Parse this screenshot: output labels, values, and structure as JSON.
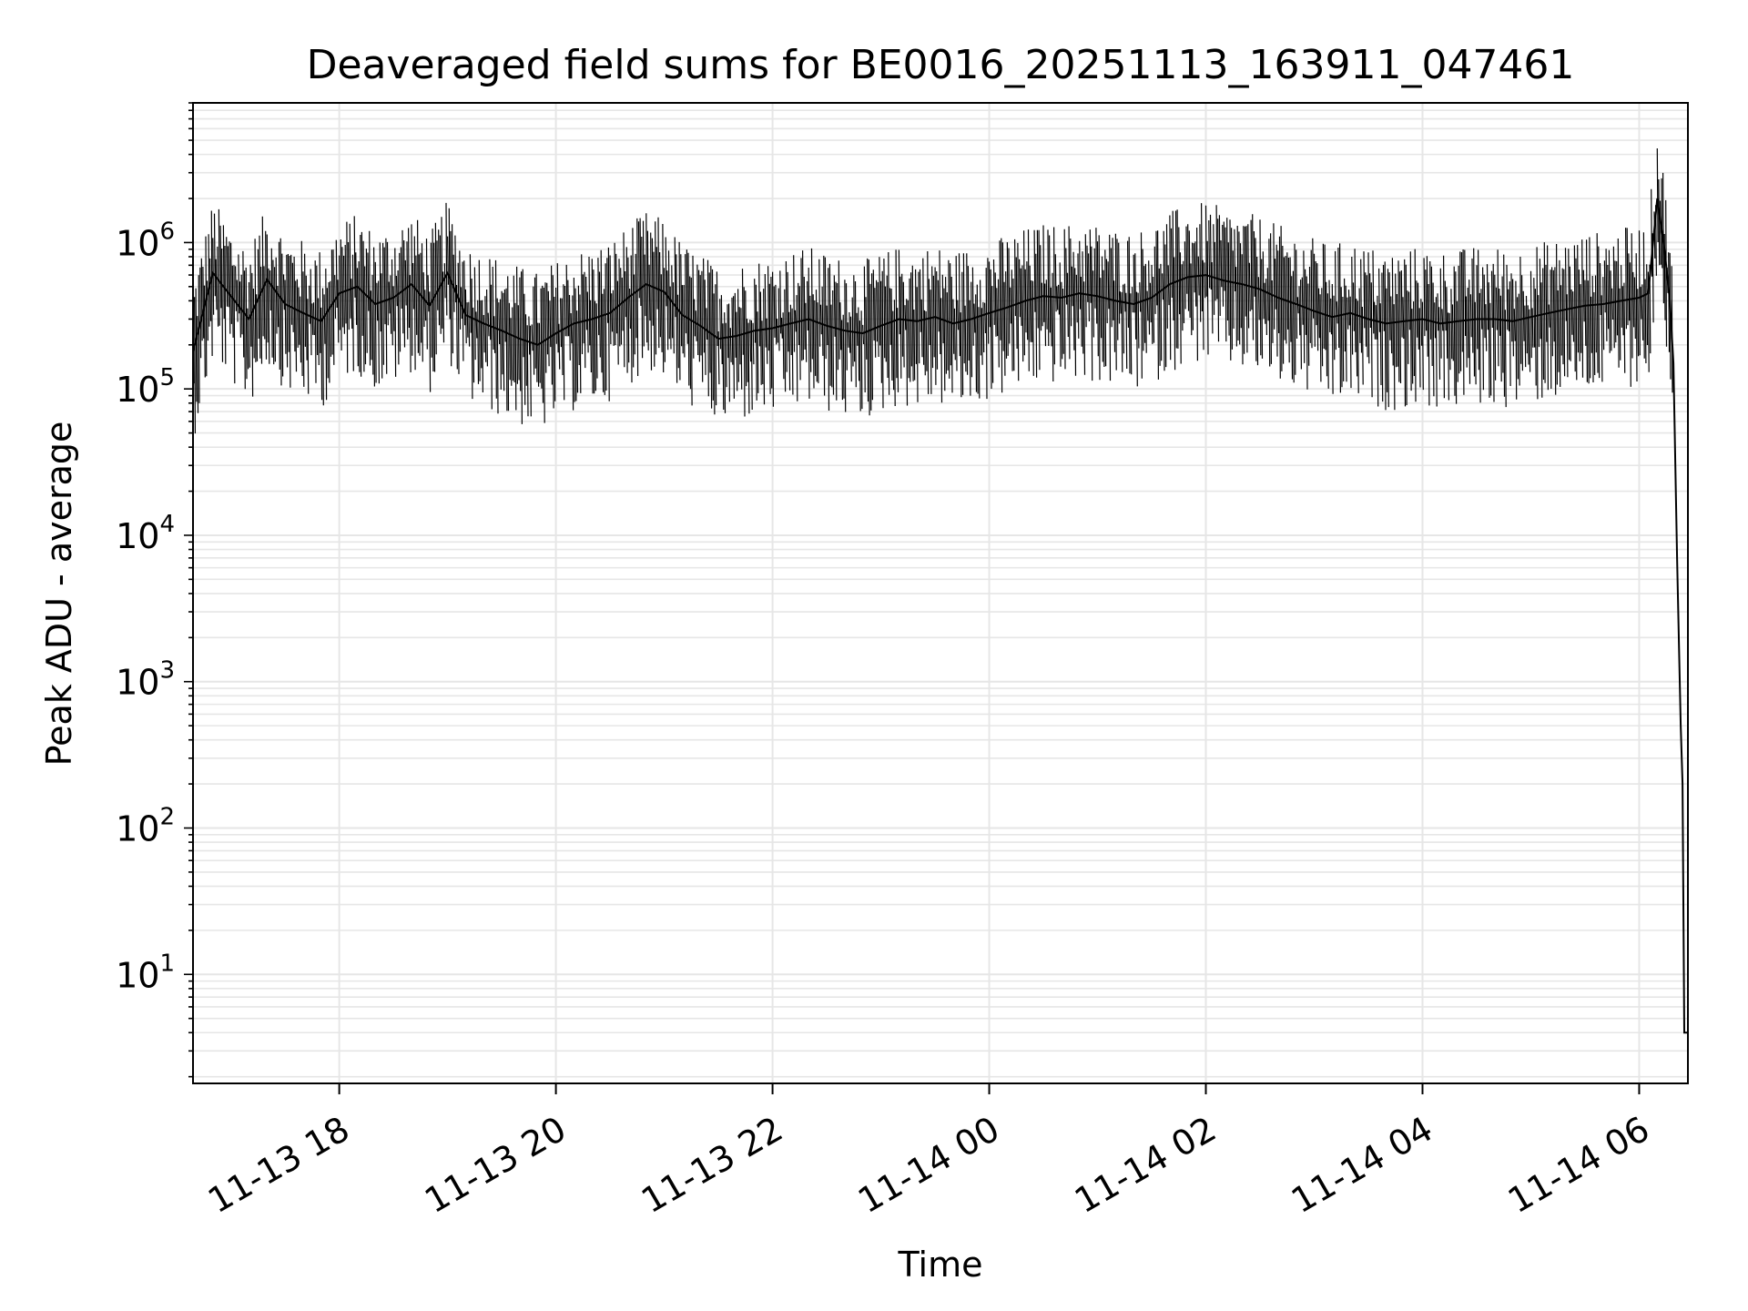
{
  "chart_data": {
    "type": "line",
    "title": "Deaveraged field sums for BE0016_20251113_163911_047461",
    "xlabel": "Time",
    "ylabel": "Peak ADU - average",
    "yscale": "log",
    "grid": true,
    "xlim": [
      "2025-11-13 16:39",
      "2025-11-14 06:27"
    ],
    "ylim": [
      1.8,
      9000000
    ],
    "xticks": [
      {
        "value": "2025-11-13 18:00",
        "label": "11-13 18"
      },
      {
        "value": "2025-11-13 20:00",
        "label": "11-13 20"
      },
      {
        "value": "2025-11-13 22:00",
        "label": "11-13 22"
      },
      {
        "value": "2025-11-14 00:00",
        "label": "11-14 00"
      },
      {
        "value": "2025-11-14 02:00",
        "label": "11-14 02"
      },
      {
        "value": "2025-11-14 04:00",
        "label": "11-14 04"
      },
      {
        "value": "2025-11-14 06:00",
        "label": "11-14 06"
      }
    ],
    "yticks": [
      {
        "value": 10,
        "base": "10",
        "exp": "1"
      },
      {
        "value": 100,
        "base": "10",
        "exp": "2"
      },
      {
        "value": 1000,
        "base": "10",
        "exp": "3"
      },
      {
        "value": 10000,
        "base": "10",
        "exp": "4"
      },
      {
        "value": 100000,
        "base": "10",
        "exp": "5"
      },
      {
        "value": 1000000,
        "base": "10",
        "exp": "6"
      }
    ],
    "series": [
      {
        "color": "#000000",
        "x": [
          "2025-11-13 16:39",
          "2025-11-13 16:50",
          "2025-11-13 17:00",
          "2025-11-13 17:10",
          "2025-11-13 17:20",
          "2025-11-13 17:30",
          "2025-11-13 17:40",
          "2025-11-13 17:50",
          "2025-11-13 18:00",
          "2025-11-13 18:10",
          "2025-11-13 18:20",
          "2025-11-13 18:30",
          "2025-11-13 18:40",
          "2025-11-13 18:50",
          "2025-11-13 19:00",
          "2025-11-13 19:10",
          "2025-11-13 19:20",
          "2025-11-13 19:30",
          "2025-11-13 19:40",
          "2025-11-13 19:50",
          "2025-11-13 20:00",
          "2025-11-13 20:10",
          "2025-11-13 20:20",
          "2025-11-13 20:30",
          "2025-11-13 20:40",
          "2025-11-13 20:50",
          "2025-11-13 21:00",
          "2025-11-13 21:10",
          "2025-11-13 21:20",
          "2025-11-13 21:30",
          "2025-11-13 21:40",
          "2025-11-13 21:50",
          "2025-11-13 22:00",
          "2025-11-13 22:10",
          "2025-11-13 22:20",
          "2025-11-13 22:30",
          "2025-11-13 22:40",
          "2025-11-13 22:50",
          "2025-11-13 23:00",
          "2025-11-13 23:10",
          "2025-11-13 23:20",
          "2025-11-13 23:30",
          "2025-11-13 23:40",
          "2025-11-13 23:50",
          "2025-11-14 00:00",
          "2025-11-14 00:10",
          "2025-11-14 00:20",
          "2025-11-14 00:30",
          "2025-11-14 00:40",
          "2025-11-14 00:50",
          "2025-11-14 01:00",
          "2025-11-14 01:10",
          "2025-11-14 01:20",
          "2025-11-14 01:30",
          "2025-11-14 01:40",
          "2025-11-14 01:50",
          "2025-11-14 02:00",
          "2025-11-14 02:10",
          "2025-11-14 02:20",
          "2025-11-14 02:30",
          "2025-11-14 02:40",
          "2025-11-14 02:50",
          "2025-11-14 03:00",
          "2025-11-14 03:10",
          "2025-11-14 03:20",
          "2025-11-14 03:30",
          "2025-11-14 03:40",
          "2025-11-14 03:50",
          "2025-11-14 04:00",
          "2025-11-14 04:10",
          "2025-11-14 04:20",
          "2025-11-14 04:30",
          "2025-11-14 04:40",
          "2025-11-14 04:50",
          "2025-11-14 05:00",
          "2025-11-14 05:10",
          "2025-11-14 05:20",
          "2025-11-14 05:30",
          "2025-11-14 05:40",
          "2025-11-14 05:50",
          "2025-11-14 06:00",
          "2025-11-14 06:05",
          "2025-11-14 06:10",
          "2025-11-14 06:14",
          "2025-11-14 06:17",
          "2025-11-14 06:19",
          "2025-11-14 06:21",
          "2025-11-14 06:23",
          "2025-11-14 06:24",
          "2025-11-14 06:25",
          "2025-11-14 06:27"
        ],
        "y": [
          180000,
          620000,
          430000,
          300000,
          560000,
          380000,
          330000,
          290000,
          450000,
          500000,
          380000,
          420000,
          520000,
          370000,
          620000,
          320000,
          280000,
          250000,
          220000,
          200000,
          240000,
          280000,
          300000,
          330000,
          420000,
          520000,
          460000,
          320000,
          270000,
          220000,
          230000,
          250000,
          260000,
          280000,
          300000,
          270000,
          250000,
          240000,
          270000,
          300000,
          290000,
          310000,
          280000,
          300000,
          330000,
          360000,
          400000,
          430000,
          420000,
          450000,
          430000,
          400000,
          380000,
          420000,
          520000,
          580000,
          600000,
          550000,
          520000,
          480000,
          420000,
          380000,
          340000,
          310000,
          330000,
          300000,
          280000,
          290000,
          300000,
          280000,
          290000,
          300000,
          300000,
          290000,
          310000,
          330000,
          350000,
          370000,
          380000,
          400000,
          420000,
          450000,
          2000000,
          900000,
          400000,
          150000,
          7000,
          500,
          200,
          4,
          4
        ]
      }
    ]
  }
}
